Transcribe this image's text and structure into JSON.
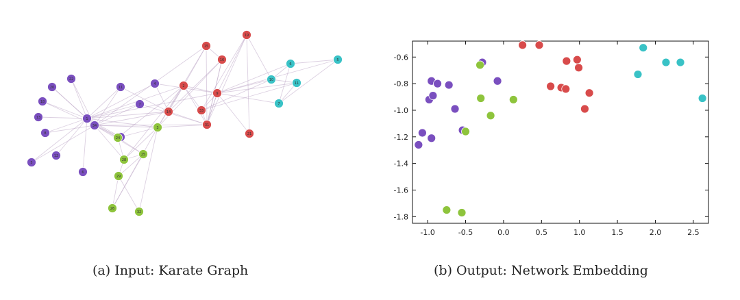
{
  "captions": {
    "a": "(a) Input: Karate Graph",
    "b": "(b) Output: Network Embedding"
  },
  "colors": {
    "purple": "#7a4fbf",
    "green": "#8ec43c",
    "red": "#d84b4b",
    "cyan": "#39c2c6",
    "edge": "#bfa9c9"
  },
  "graph": {
    "nodes": [
      {
        "id": "purple-hub-1",
        "label": "1",
        "group": "purple"
      },
      {
        "id": "purple-hub-2",
        "label": "34",
        "group": "purple"
      },
      {
        "id": "purple-a",
        "label": "22",
        "group": "purple"
      },
      {
        "id": "purple-b",
        "label": "20",
        "group": "purple"
      },
      {
        "id": "purple-c",
        "label": "18",
        "group": "purple"
      },
      {
        "id": "purple-d",
        "label": "13",
        "group": "purple"
      },
      {
        "id": "purple-e",
        "label": "8",
        "group": "purple"
      },
      {
        "id": "purple-f",
        "label": "12",
        "group": "purple"
      },
      {
        "id": "purple-g",
        "label": "5",
        "group": "purple"
      },
      {
        "id": "purple-h",
        "label": "11",
        "group": "purple"
      },
      {
        "id": "purple-i",
        "label": "7",
        "group": "purple"
      },
      {
        "id": "purple-j",
        "label": "6",
        "group": "purple"
      },
      {
        "id": "purple-k",
        "label": "17",
        "group": "purple"
      },
      {
        "id": "purple-l",
        "label": "4",
        "group": "purple"
      },
      {
        "id": "green-a",
        "label": "3",
        "group": "green"
      },
      {
        "id": "green-b",
        "label": "24",
        "group": "green"
      },
      {
        "id": "green-c",
        "label": "28",
        "group": "green"
      },
      {
        "id": "green-d",
        "label": "25",
        "group": "green"
      },
      {
        "id": "green-e",
        "label": "29",
        "group": "green"
      },
      {
        "id": "green-f",
        "label": "26",
        "group": "green"
      },
      {
        "id": "green-g",
        "label": "32",
        "group": "green"
      },
      {
        "id": "green-h",
        "label": "30",
        "group": "green"
      },
      {
        "id": "red-a",
        "label": "2",
        "group": "red"
      },
      {
        "id": "red-b",
        "label": "14",
        "group": "red"
      },
      {
        "id": "red-c",
        "label": "9",
        "group": "red"
      },
      {
        "id": "red-d",
        "label": "33",
        "group": "red"
      },
      {
        "id": "red-e",
        "label": "31",
        "group": "red"
      },
      {
        "id": "red-f",
        "label": "15",
        "group": "red"
      },
      {
        "id": "red-g",
        "label": "16",
        "group": "red"
      },
      {
        "id": "red-h",
        "label": "19",
        "group": "red"
      },
      {
        "id": "red-i",
        "label": "21",
        "group": "red"
      },
      {
        "id": "red-j",
        "label": "23",
        "group": "red"
      },
      {
        "id": "red-k",
        "label": "27",
        "group": "red"
      },
      {
        "id": "cyan-a",
        "label": "10",
        "group": "cyan"
      },
      {
        "id": "cyan-b",
        "label": "6",
        "group": "cyan"
      },
      {
        "id": "cyan-c",
        "label": "11",
        "group": "cyan"
      },
      {
        "id": "cyan-d",
        "label": "7",
        "group": "cyan"
      },
      {
        "id": "cyan-e",
        "label": "5",
        "group": "cyan"
      }
    ],
    "edges": [
      [
        "purple-hub-1",
        "purple-hub-2"
      ],
      [
        "purple-hub-1",
        "purple-a"
      ],
      [
        "purple-hub-1",
        "purple-b"
      ],
      [
        "purple-hub-1",
        "purple-c"
      ],
      [
        "purple-hub-1",
        "purple-d"
      ],
      [
        "purple-hub-1",
        "purple-e"
      ],
      [
        "purple-hub-1",
        "purple-f"
      ],
      [
        "purple-hub-1",
        "purple-g"
      ],
      [
        "purple-hub-1",
        "purple-h"
      ],
      [
        "purple-hub-1",
        "purple-i"
      ],
      [
        "purple-hub-1",
        "purple-j"
      ],
      [
        "purple-hub-1",
        "purple-k"
      ],
      [
        "purple-hub-1",
        "purple-l"
      ],
      [
        "purple-hub-1",
        "green-a"
      ],
      [
        "purple-hub-1",
        "green-b"
      ],
      [
        "purple-hub-1",
        "red-a"
      ],
      [
        "purple-hub-1",
        "red-b"
      ],
      [
        "purple-hub-1",
        "red-c"
      ],
      [
        "purple-hub-2",
        "purple-a"
      ],
      [
        "purple-hub-2",
        "purple-b"
      ],
      [
        "purple-hub-2",
        "purple-c"
      ],
      [
        "purple-hub-2",
        "purple-e"
      ],
      [
        "purple-hub-2",
        "purple-g"
      ],
      [
        "purple-hub-2",
        "purple-h"
      ],
      [
        "purple-hub-2",
        "purple-i"
      ],
      [
        "purple-hub-2",
        "purple-k"
      ],
      [
        "purple-hub-2",
        "green-a"
      ],
      [
        "purple-hub-2",
        "green-b"
      ],
      [
        "purple-hub-2",
        "green-c"
      ],
      [
        "purple-hub-2",
        "green-d"
      ],
      [
        "purple-hub-2",
        "red-b"
      ],
      [
        "purple-hub-2",
        "red-e"
      ],
      [
        "purple-hub-2",
        "red-f"
      ],
      [
        "purple-h",
        "red-b"
      ],
      [
        "purple-i",
        "red-e"
      ],
      [
        "purple-l",
        "red-b"
      ],
      [
        "green-a",
        "green-b"
      ],
      [
        "green-a",
        "green-c"
      ],
      [
        "green-a",
        "red-e"
      ],
      [
        "green-a",
        "red-a"
      ],
      [
        "green-a",
        "red-f"
      ],
      [
        "green-a",
        "red-g"
      ],
      [
        "green-b",
        "green-c"
      ],
      [
        "green-b",
        "green-d"
      ],
      [
        "green-c",
        "green-d"
      ],
      [
        "green-c",
        "green-e"
      ],
      [
        "green-d",
        "green-e"
      ],
      [
        "green-d",
        "green-f"
      ],
      [
        "green-e",
        "green-f"
      ],
      [
        "green-e",
        "green-g"
      ],
      [
        "green-f",
        "green-h"
      ],
      [
        "green-g",
        "green-h"
      ],
      [
        "green-b",
        "red-a"
      ],
      [
        "green-c",
        "red-a"
      ],
      [
        "red-a",
        "red-b"
      ],
      [
        "red-a",
        "red-c"
      ],
      [
        "red-a",
        "red-d"
      ],
      [
        "red-a",
        "red-e"
      ],
      [
        "red-a",
        "red-f"
      ],
      [
        "red-b",
        "red-e"
      ],
      [
        "red-b",
        "red-g"
      ],
      [
        "red-c",
        "red-d"
      ],
      [
        "red-c",
        "red-e"
      ],
      [
        "red-c",
        "red-h"
      ],
      [
        "red-c",
        "red-i"
      ],
      [
        "red-c",
        "red-j"
      ],
      [
        "red-c",
        "red-k"
      ],
      [
        "red-d",
        "red-e"
      ],
      [
        "red-d",
        "red-h"
      ],
      [
        "red-e",
        "red-f"
      ],
      [
        "red-e",
        "red-g"
      ],
      [
        "red-e",
        "red-h"
      ],
      [
        "red-f",
        "red-g"
      ],
      [
        "red-g",
        "red-k"
      ],
      [
        "red-h",
        "red-i"
      ],
      [
        "red-c",
        "cyan-a"
      ],
      [
        "red-c",
        "cyan-b"
      ],
      [
        "red-c",
        "cyan-c"
      ],
      [
        "red-c",
        "cyan-d"
      ],
      [
        "red-c",
        "cyan-e"
      ],
      [
        "red-d",
        "cyan-a"
      ],
      [
        "red-d",
        "cyan-c"
      ],
      [
        "red-h",
        "cyan-a"
      ],
      [
        "cyan-a",
        "cyan-b"
      ],
      [
        "cyan-a",
        "cyan-c"
      ],
      [
        "cyan-b",
        "cyan-d"
      ],
      [
        "cyan-b",
        "cyan-e"
      ],
      [
        "cyan-c",
        "cyan-d"
      ],
      [
        "cyan-d",
        "cyan-e"
      ]
    ]
  },
  "chart_data": {
    "type": "scatter",
    "xlim": [
      -1.2,
      2.7
    ],
    "ylim": [
      -1.85,
      -0.48
    ],
    "xticks": [
      "-1.0",
      "-0.5",
      "0.0",
      "0.5",
      "1.0",
      "1.5",
      "2.0",
      "2.5"
    ],
    "xtick_values": [
      -1.0,
      -0.5,
      0.0,
      0.5,
      1.0,
      1.5,
      2.0,
      2.5
    ],
    "yticks": [
      "-0.6",
      "-0.8",
      "-1.0",
      "-1.2",
      "-1.4",
      "-1.6",
      "-1.8"
    ],
    "ytick_values": [
      -0.6,
      -0.8,
      -1.0,
      -1.2,
      -1.4,
      -1.6,
      -1.8
    ],
    "points": [
      {
        "x": -1.12,
        "y": -1.26,
        "group": "purple"
      },
      {
        "x": -1.07,
        "y": -1.17,
        "group": "purple"
      },
      {
        "x": -0.95,
        "y": -1.21,
        "group": "purple"
      },
      {
        "x": -0.98,
        "y": -0.92,
        "group": "purple"
      },
      {
        "x": -0.93,
        "y": -0.89,
        "group": "purple"
      },
      {
        "x": -0.95,
        "y": -0.78,
        "group": "purple"
      },
      {
        "x": -0.87,
        "y": -0.8,
        "group": "purple"
      },
      {
        "x": -0.72,
        "y": -0.81,
        "group": "purple"
      },
      {
        "x": -0.64,
        "y": -0.99,
        "group": "purple"
      },
      {
        "x": -0.54,
        "y": -1.15,
        "group": "purple"
      },
      {
        "x": -0.28,
        "y": -0.64,
        "group": "purple"
      },
      {
        "x": -0.08,
        "y": -0.78,
        "group": "purple"
      },
      {
        "x": -0.5,
        "y": -1.16,
        "group": "green"
      },
      {
        "x": -0.31,
        "y": -0.66,
        "group": "green"
      },
      {
        "x": -0.3,
        "y": -0.91,
        "group": "green"
      },
      {
        "x": -0.17,
        "y": -1.04,
        "group": "green"
      },
      {
        "x": 0.13,
        "y": -0.92,
        "group": "green"
      },
      {
        "x": -0.75,
        "y": -1.75,
        "group": "green"
      },
      {
        "x": -0.55,
        "y": -1.77,
        "group": "green"
      },
      {
        "x": 0.25,
        "y": -0.51,
        "group": "red"
      },
      {
        "x": 0.47,
        "y": -0.51,
        "group": "red"
      },
      {
        "x": 0.62,
        "y": -0.82,
        "group": "red"
      },
      {
        "x": 0.76,
        "y": -0.83,
        "group": "red"
      },
      {
        "x": 0.82,
        "y": -0.84,
        "group": "red"
      },
      {
        "x": 0.83,
        "y": -0.63,
        "group": "red"
      },
      {
        "x": 0.97,
        "y": -0.62,
        "group": "red"
      },
      {
        "x": 0.99,
        "y": -0.68,
        "group": "red"
      },
      {
        "x": 1.07,
        "y": -0.99,
        "group": "red"
      },
      {
        "x": 1.13,
        "y": -0.87,
        "group": "red"
      },
      {
        "x": 1.77,
        "y": -0.73,
        "group": "cyan"
      },
      {
        "x": 1.84,
        "y": -0.53,
        "group": "cyan"
      },
      {
        "x": 2.14,
        "y": -0.64,
        "group": "cyan"
      },
      {
        "x": 2.33,
        "y": -0.64,
        "group": "cyan"
      },
      {
        "x": 2.62,
        "y": -0.91,
        "group": "cyan"
      }
    ]
  }
}
